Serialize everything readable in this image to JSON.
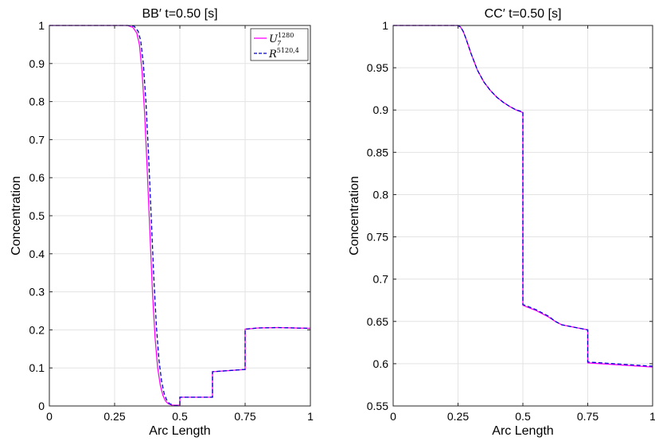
{
  "chart_data": [
    {
      "type": "line",
      "title": "BB′ t=0.50 [s]",
      "xlabel": "Arc Length",
      "ylabel": "Concentration",
      "xlim": [
        0,
        1
      ],
      "ylim": [
        0,
        1
      ],
      "xticks": [
        0,
        0.25,
        0.5,
        0.75,
        1
      ],
      "xtick_labels": [
        "0",
        "0.25",
        "0.5",
        "0.75",
        "1"
      ],
      "yticks": [
        0,
        0.1,
        0.2,
        0.3,
        0.4,
        0.5,
        0.6,
        0.7,
        0.8,
        0.9,
        1
      ],
      "ytick_labels": [
        "0",
        "0.1",
        "0.2",
        "0.3",
        "0.4",
        "0.5",
        "0.6",
        "0.7",
        "0.8",
        "0.9",
        "1"
      ],
      "grid": true,
      "legend": {
        "position": "top-right",
        "entries": [
          {
            "label_main": "U",
            "label_sub": "7",
            "label_sup": "1280",
            "style": "solid",
            "color": "#ff00ff"
          },
          {
            "label_main": "R",
            "label_sub": "",
            "label_sup": "5120,4",
            "style": "dashed",
            "color": "#0000cc"
          }
        ]
      },
      "series": [
        {
          "style": "solid",
          "color": "#ff00ff",
          "points": [
            [
              0,
              1
            ],
            [
              0.3,
              1
            ],
            [
              0.32,
              0.995
            ],
            [
              0.335,
              0.98
            ],
            [
              0.345,
              0.95
            ],
            [
              0.355,
              0.88
            ],
            [
              0.365,
              0.77
            ],
            [
              0.375,
              0.62
            ],
            [
              0.385,
              0.46
            ],
            [
              0.395,
              0.3
            ],
            [
              0.405,
              0.18
            ],
            [
              0.415,
              0.1
            ],
            [
              0.425,
              0.055
            ],
            [
              0.435,
              0.028
            ],
            [
              0.445,
              0.013
            ],
            [
              0.455,
              0.006
            ],
            [
              0.47,
              0.002
            ],
            [
              0.5,
              0.002
            ],
            [
              0.5,
              0.023
            ],
            [
              0.625,
              0.023
            ],
            [
              0.625,
              0.09
            ],
            [
              0.75,
              0.096
            ],
            [
              0.75,
              0.202
            ],
            [
              0.8,
              0.205
            ],
            [
              0.875,
              0.206
            ],
            [
              1,
              0.204
            ]
          ]
        },
        {
          "style": "dashed",
          "color": "#0000cc",
          "points": [
            [
              0,
              1
            ],
            [
              0.3,
              1
            ],
            [
              0.325,
              0.998
            ],
            [
              0.34,
              0.985
            ],
            [
              0.35,
              0.96
            ],
            [
              0.36,
              0.9
            ],
            [
              0.37,
              0.8
            ],
            [
              0.38,
              0.66
            ],
            [
              0.39,
              0.5
            ],
            [
              0.4,
              0.34
            ],
            [
              0.41,
              0.21
            ],
            [
              0.42,
              0.12
            ],
            [
              0.43,
              0.065
            ],
            [
              0.44,
              0.032
            ],
            [
              0.45,
              0.015
            ],
            [
              0.46,
              0.006
            ],
            [
              0.48,
              0.001
            ],
            [
              0.5,
              0.001
            ],
            [
              0.5,
              0.023
            ],
            [
              0.625,
              0.023
            ],
            [
              0.625,
              0.09
            ],
            [
              0.75,
              0.096
            ],
            [
              0.75,
              0.202
            ],
            [
              0.8,
              0.205
            ],
            [
              0.875,
              0.206
            ],
            [
              1,
              0.204
            ]
          ]
        }
      ]
    },
    {
      "type": "line",
      "title": "CC′ t=0.50 [s]",
      "xlabel": "Arc Length",
      "ylabel": "Concentration",
      "xlim": [
        0,
        1
      ],
      "ylim": [
        0.55,
        1
      ],
      "xticks": [
        0,
        0.25,
        0.5,
        0.75,
        1
      ],
      "xtick_labels": [
        "0",
        "0.25",
        "0.5",
        "0.75",
        "1"
      ],
      "yticks": [
        0.55,
        0.6,
        0.65,
        0.7,
        0.75,
        0.8,
        0.85,
        0.9,
        0.95,
        1
      ],
      "ytick_labels": [
        "0.55",
        "0.6",
        "0.65",
        "0.7",
        "0.75",
        "0.8",
        "0.85",
        "0.9",
        "0.95",
        "1"
      ],
      "grid": true,
      "series": [
        {
          "style": "solid",
          "color": "#ff00ff",
          "points": [
            [
              0,
              1
            ],
            [
              0.25,
              1
            ],
            [
              0.26,
              0.998
            ],
            [
              0.27,
              0.993
            ],
            [
              0.28,
              0.985
            ],
            [
              0.3,
              0.967
            ],
            [
              0.325,
              0.947
            ],
            [
              0.35,
              0.933
            ],
            [
              0.375,
              0.923
            ],
            [
              0.4,
              0.915
            ],
            [
              0.425,
              0.909
            ],
            [
              0.45,
              0.904
            ],
            [
              0.475,
              0.9
            ],
            [
              0.5,
              0.897
            ],
            [
              0.5,
              0.669
            ],
            [
              0.55,
              0.663
            ],
            [
              0.6,
              0.655
            ],
            [
              0.625,
              0.65
            ],
            [
              0.65,
              0.646
            ],
            [
              0.7,
              0.643
            ],
            [
              0.75,
              0.64
            ],
            [
              0.75,
              0.601
            ],
            [
              0.85,
              0.599
            ],
            [
              1,
              0.596
            ]
          ]
        },
        {
          "style": "dashed",
          "color": "#0000cc",
          "points": [
            [
              0,
              1
            ],
            [
              0.25,
              1
            ],
            [
              0.26,
              0.998
            ],
            [
              0.27,
              0.993
            ],
            [
              0.28,
              0.985
            ],
            [
              0.3,
              0.967
            ],
            [
              0.325,
              0.947
            ],
            [
              0.35,
              0.933
            ],
            [
              0.375,
              0.923
            ],
            [
              0.4,
              0.915
            ],
            [
              0.425,
              0.909
            ],
            [
              0.45,
              0.904
            ],
            [
              0.475,
              0.9
            ],
            [
              0.5,
              0.898
            ],
            [
              0.5,
              0.67
            ],
            [
              0.55,
              0.664
            ],
            [
              0.6,
              0.656
            ],
            [
              0.625,
              0.65
            ],
            [
              0.65,
              0.646
            ],
            [
              0.7,
              0.643
            ],
            [
              0.75,
              0.64
            ],
            [
              0.75,
              0.602
            ],
            [
              0.85,
              0.6
            ],
            [
              1,
              0.597
            ]
          ]
        }
      ]
    }
  ]
}
